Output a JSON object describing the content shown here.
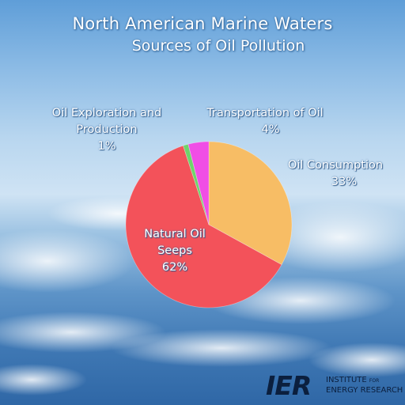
{
  "chart_data": {
    "type": "pie",
    "title": "North American Marine Waters",
    "subtitle": "Sources of Oil Pollution",
    "slices": [
      {
        "label": "Oil Consumption",
        "value": 33,
        "value_label": "33%",
        "color": "#f7bd65"
      },
      {
        "label": "Natural Oil Seeps",
        "label_lines": [
          "Natural Oil",
          "Seeps"
        ],
        "value": 62,
        "value_label": "62%",
        "color": "#f3525a"
      },
      {
        "label": "Oil Exploration and Production",
        "label_lines": [
          "Oil Exploration and",
          "Production"
        ],
        "value": 1,
        "value_label": "1%",
        "color": "#6fd36b"
      },
      {
        "label": "Transportation of Oil",
        "value": 4,
        "value_label": "4%",
        "color": "#f04ee6"
      }
    ]
  },
  "logo": {
    "mark": "IER",
    "line1_a": "INSTITUTE",
    "line1_b": "FOR",
    "line2": "ENERGY RESEARCH"
  }
}
